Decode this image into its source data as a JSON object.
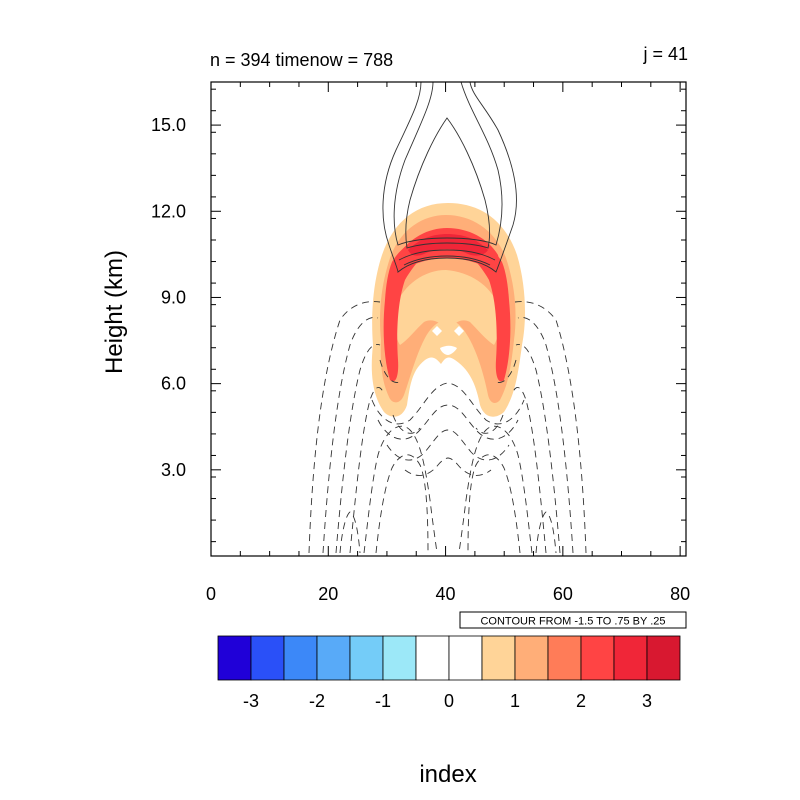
{
  "chart_data": {
    "type": "heatmap",
    "title_left": "n = 394 timenow = 788",
    "title_right": "j = 41",
    "xlabel": "index",
    "ylabel": "Height (km)",
    "xlim": [
      0,
      81
    ],
    "ylim": [
      0,
      16.5
    ],
    "x_ticks": [
      "0",
      "20",
      "40",
      "60",
      "80"
    ],
    "y_ticks": [
      "3.0",
      "6.0",
      "9.0",
      "12.0",
      "15.0"
    ],
    "contour_info": "CONTOUR FROM -1.5 TO .75 BY .25",
    "colorbar": {
      "labels": [
        "-3",
        "-2",
        "-1",
        "0",
        "1",
        "2",
        "3"
      ],
      "colors": [
        "#2000d8",
        "#2a50f8",
        "#3c88f8",
        "#58aaf8",
        "#74ccf8",
        "#9ce8f8",
        "#ffffff",
        "#ffffff",
        "#ffd498",
        "#ffae78",
        "#ff7c58",
        "#ff4444",
        "#f02638",
        "#d81830"
      ]
    },
    "shading": [
      {
        "level": "1",
        "color": "#ffd498"
      },
      {
        "level": "2",
        "color": "#ffae78"
      },
      {
        "level": "3",
        "color": "#ff4444"
      },
      {
        "level": "4",
        "color": "#f02638"
      }
    ]
  }
}
